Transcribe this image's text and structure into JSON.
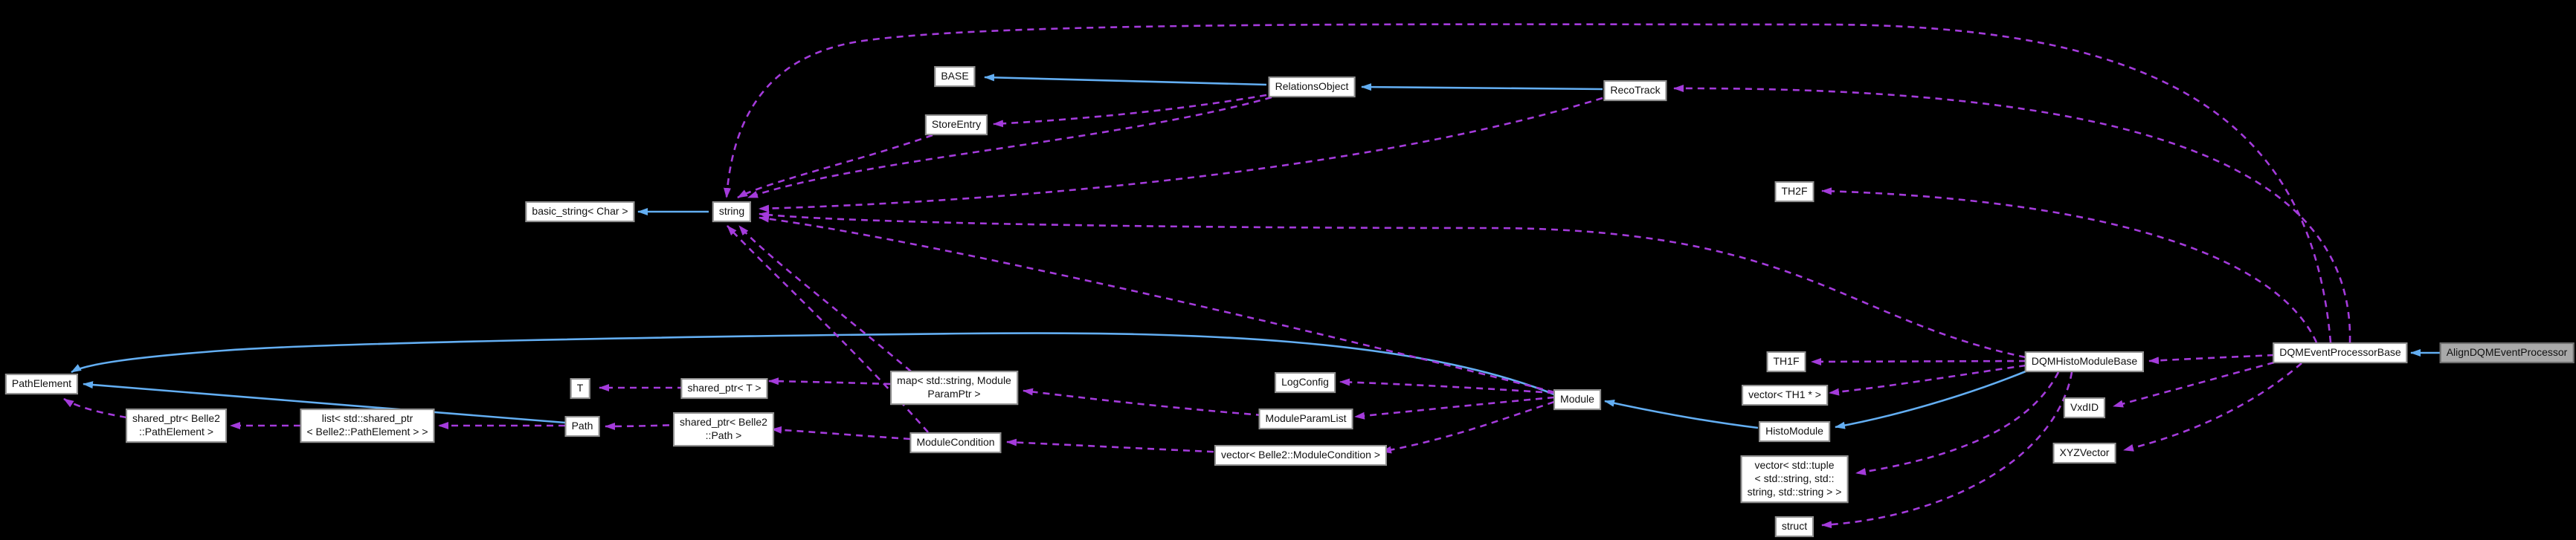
{
  "diagram": {
    "type": "collaboration-graph",
    "subject": "AlignDQMEventProcessor",
    "background": "#000000",
    "colors": {
      "inheritance_edge": "#63aef2",
      "usage_edge": "#a43bdb",
      "node_fill": "#ffffff",
      "node_border": "#8f8f8f",
      "node_text": "#111111",
      "highlight_fill": "#a9a9a9",
      "highlight_border": "#6e6e6e"
    },
    "nodes": [
      {
        "id": "base",
        "label": "BASE",
        "highlight": false
      },
      {
        "id": "store_entry",
        "label": "StoreEntry",
        "highlight": false
      },
      {
        "id": "relations_object",
        "label": "RelationsObject",
        "highlight": false
      },
      {
        "id": "reco_track",
        "label": "RecoTrack",
        "highlight": false
      },
      {
        "id": "basic_string",
        "label": "basic_string< Char >",
        "highlight": false
      },
      {
        "id": "string",
        "label": "string",
        "highlight": false
      },
      {
        "id": "th2f",
        "label": "TH2F",
        "highlight": false
      },
      {
        "id": "path_element",
        "label": "PathElement",
        "highlight": false
      },
      {
        "id": "shared_ptr_path_element",
        "label": "shared_ptr< Belle2\n::PathElement >",
        "highlight": false
      },
      {
        "id": "list_shared_ptr",
        "label": "list< std::shared_ptr\n< Belle2::PathElement > >",
        "highlight": false
      },
      {
        "id": "t",
        "label": "T",
        "highlight": false
      },
      {
        "id": "shared_ptr_t",
        "label": "shared_ptr< T >",
        "highlight": false
      },
      {
        "id": "map_param",
        "label": "map< std::string, Module\nParamPtr >",
        "highlight": false
      },
      {
        "id": "path",
        "label": "Path",
        "highlight": false
      },
      {
        "id": "shared_ptr_path",
        "label": "shared_ptr< Belle2\n::Path >",
        "highlight": false
      },
      {
        "id": "module_condition",
        "label": "ModuleCondition",
        "highlight": false
      },
      {
        "id": "log_config",
        "label": "LogConfig",
        "highlight": false
      },
      {
        "id": "module_param_list",
        "label": "ModuleParamList",
        "highlight": false
      },
      {
        "id": "vector_module_condition",
        "label": "vector< Belle2::ModuleCondition >",
        "highlight": false
      },
      {
        "id": "module",
        "label": "Module",
        "highlight": false
      },
      {
        "id": "th1f",
        "label": "TH1F",
        "highlight": false
      },
      {
        "id": "vector_th1",
        "label": "vector< TH1 * >",
        "highlight": false
      },
      {
        "id": "dqm_histo_module_base",
        "label": "DQMHistoModuleBase",
        "highlight": false
      },
      {
        "id": "vxdid",
        "label": "VxdID",
        "highlight": false
      },
      {
        "id": "histo_module",
        "label": "HistoModule",
        "highlight": false
      },
      {
        "id": "xyz_vector",
        "label": "XYZVector",
        "highlight": false
      },
      {
        "id": "vector_tuple",
        "label": "vector< std::tuple\n< std::string, std::\nstring, std::string > >",
        "highlight": false
      },
      {
        "id": "struct",
        "label": "struct",
        "highlight": false
      },
      {
        "id": "dqm_event_processor_base",
        "label": "DQMEventProcessorBase",
        "highlight": false
      },
      {
        "id": "align_dqm_event_processor",
        "label": "AlignDQMEventProcessor",
        "highlight": true
      }
    ],
    "edges": [
      {
        "from": "string",
        "to": "basic_string",
        "type": "inheritance"
      },
      {
        "from": "relations_object",
        "to": "base",
        "type": "inheritance"
      },
      {
        "from": "reco_track",
        "to": "relations_object",
        "type": "inheritance"
      },
      {
        "from": "path",
        "to": "path_element",
        "type": "inheritance"
      },
      {
        "from": "module",
        "to": "path_element",
        "type": "inheritance"
      },
      {
        "from": "histo_module",
        "to": "module",
        "type": "inheritance"
      },
      {
        "from": "dqm_histo_module_base",
        "to": "histo_module",
        "type": "inheritance"
      },
      {
        "from": "align_dqm_event_processor",
        "to": "dqm_event_processor_base",
        "type": "inheritance"
      },
      {
        "from": "relations_object",
        "to": "store_entry",
        "type": "usage"
      },
      {
        "from": "store_entry",
        "to": "string",
        "type": "usage"
      },
      {
        "from": "relations_object",
        "to": "string",
        "type": "usage"
      },
      {
        "from": "reco_track",
        "to": "string",
        "type": "usage"
      },
      {
        "from": "module",
        "to": "string",
        "type": "usage"
      },
      {
        "from": "dqm_histo_module_base",
        "to": "string",
        "type": "usage"
      },
      {
        "from": "dqm_event_processor_base",
        "to": "string",
        "type": "usage"
      },
      {
        "from": "map_param",
        "to": "string",
        "type": "usage"
      },
      {
        "from": "module_condition",
        "to": "string",
        "type": "usage"
      },
      {
        "from": "shared_ptr_path_element",
        "to": "path_element",
        "type": "usage"
      },
      {
        "from": "list_shared_ptr",
        "to": "shared_ptr_path_element",
        "type": "usage"
      },
      {
        "from": "path",
        "to": "list_shared_ptr",
        "type": "usage"
      },
      {
        "from": "shared_ptr_t",
        "to": "t",
        "type": "usage"
      },
      {
        "from": "map_param",
        "to": "shared_ptr_t",
        "type": "usage"
      },
      {
        "from": "module_param_list",
        "to": "map_param",
        "type": "usage"
      },
      {
        "from": "shared_ptr_path",
        "to": "path",
        "type": "usage"
      },
      {
        "from": "module_condition",
        "to": "shared_ptr_path",
        "type": "usage"
      },
      {
        "from": "vector_module_condition",
        "to": "module_condition",
        "type": "usage"
      },
      {
        "from": "module",
        "to": "log_config",
        "type": "usage"
      },
      {
        "from": "module",
        "to": "module_param_list",
        "type": "usage"
      },
      {
        "from": "module",
        "to": "vector_module_condition",
        "type": "usage"
      },
      {
        "from": "dqm_histo_module_base",
        "to": "th1f",
        "type": "usage"
      },
      {
        "from": "dqm_histo_module_base",
        "to": "vector_th1",
        "type": "usage"
      },
      {
        "from": "dqm_histo_module_base",
        "to": "vector_tuple",
        "type": "usage"
      },
      {
        "from": "dqm_histo_module_base",
        "to": "struct",
        "type": "usage"
      },
      {
        "from": "dqm_event_processor_base",
        "to": "dqm_histo_module_base",
        "type": "usage"
      },
      {
        "from": "dqm_event_processor_base",
        "to": "vxdid",
        "type": "usage"
      },
      {
        "from": "dqm_event_processor_base",
        "to": "xyz_vector",
        "type": "usage"
      },
      {
        "from": "dqm_event_processor_base",
        "to": "th2f",
        "type": "usage"
      },
      {
        "from": "dqm_event_processor_base",
        "to": "reco_track",
        "type": "usage"
      }
    ]
  }
}
